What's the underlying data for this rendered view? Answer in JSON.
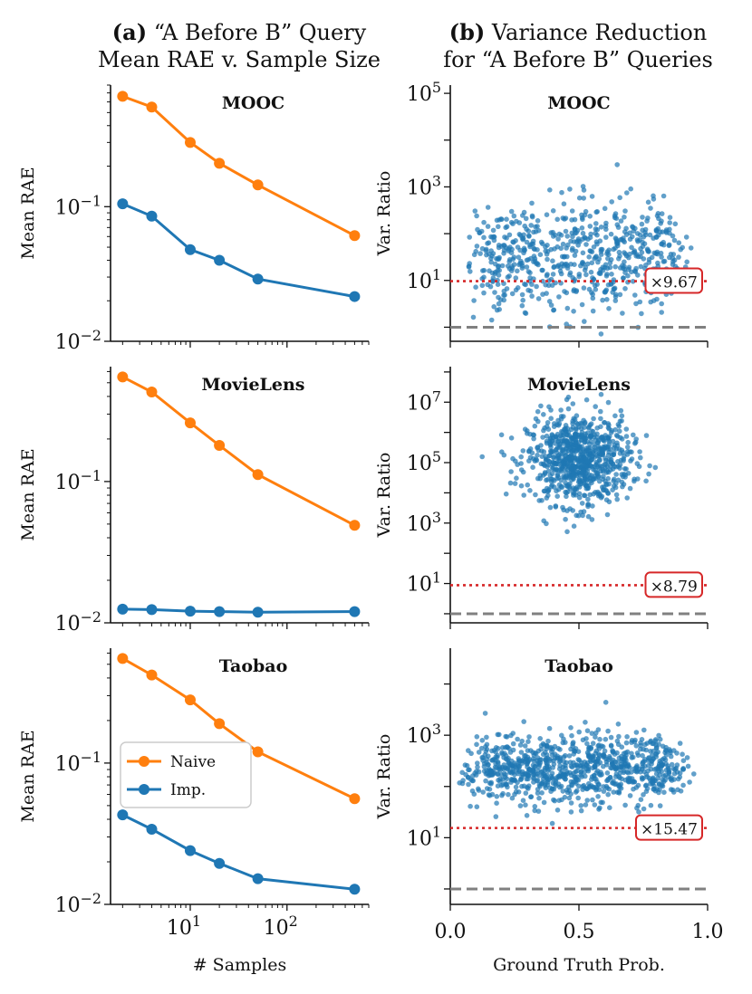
{
  "titles": {
    "left": {
      "tag": "(a)",
      "line1": "“A Before B” Query",
      "line2": "Mean RAE v. Sample Size"
    },
    "right": {
      "tag": "(b)",
      "line1": "Variance Reduction",
      "line2": "for “A Before B” Queries"
    }
  },
  "colors": {
    "naive": "#ff7f0e",
    "improved": "#1f77b4",
    "ratio_line": "#d62728",
    "baseline": "#808080"
  },
  "legend": {
    "items": [
      "Naive",
      "Imp."
    ],
    "placement": "center-left (Taobao panel)"
  },
  "chart_data": [
    {
      "type": "line",
      "panel": "MOOC",
      "ylabel": "Mean RAE",
      "xlabel": "",
      "xscale": "log",
      "yscale": "log",
      "xlim": [
        1.5,
        700
      ],
      "ylim": [
        0.01,
        0.8
      ],
      "x": [
        2,
        4,
        10,
        20,
        50,
        500
      ],
      "series": [
        {
          "name": "Naive",
          "values": [
            0.66,
            0.55,
            0.3,
            0.21,
            0.145,
            0.061
          ]
        },
        {
          "name": "Imp.",
          "values": [
            0.105,
            0.085,
            0.048,
            0.04,
            0.029,
            0.0215
          ]
        }
      ],
      "x_ticks": [
        "10^1",
        "10^2"
      ],
      "y_ticks": [
        "10^-2",
        "10^-1"
      ]
    },
    {
      "type": "scatter",
      "panel": "MOOC",
      "ylabel": "Var. Ratio",
      "xlabel": "",
      "yscale": "log",
      "xlim": [
        0,
        1
      ],
      "ylim": [
        0.5,
        150000
      ],
      "reference_ratio": 9.67,
      "ratio_label": "×9.67",
      "baseline": 1,
      "y_ticks": [
        "10^1",
        "10^3",
        "10^5"
      ]
    },
    {
      "type": "line",
      "panel": "MovieLens",
      "ylabel": "Mean RAE",
      "xlabel": "",
      "xscale": "log",
      "yscale": "log",
      "xlim": [
        1.5,
        700
      ],
      "ylim": [
        0.01,
        0.65
      ],
      "x": [
        2,
        4,
        10,
        20,
        50,
        500
      ],
      "series": [
        {
          "name": "Naive",
          "values": [
            0.55,
            0.43,
            0.26,
            0.18,
            0.112,
            0.049
          ]
        },
        {
          "name": "Imp.",
          "values": [
            0.0125,
            0.0124,
            0.0121,
            0.012,
            0.0119,
            0.012
          ]
        }
      ],
      "x_ticks": [
        "10^1",
        "10^2"
      ],
      "y_ticks": [
        "10^-2",
        "10^-1"
      ]
    },
    {
      "type": "scatter",
      "panel": "MovieLens",
      "ylabel": "Var. Ratio",
      "xlabel": "",
      "yscale": "log",
      "xlim": [
        0,
        1
      ],
      "ylim": [
        0.5,
        150000000
      ],
      "reference_ratio": 8.79,
      "ratio_label": "×8.79",
      "baseline": 1,
      "y_ticks": [
        "10^1",
        "10^3",
        "10^5",
        "10^7"
      ]
    },
    {
      "type": "line",
      "panel": "Taobao",
      "ylabel": "Mean RAE",
      "xlabel": "# Samples",
      "xscale": "log",
      "yscale": "log",
      "xlim": [
        1.5,
        700
      ],
      "ylim": [
        0.01,
        0.65
      ],
      "x": [
        2,
        4,
        10,
        20,
        50,
        500
      ],
      "series": [
        {
          "name": "Naive",
          "values": [
            0.55,
            0.42,
            0.28,
            0.19,
            0.12,
            0.056
          ]
        },
        {
          "name": "Imp.",
          "values": [
            0.043,
            0.034,
            0.024,
            0.0195,
            0.0152,
            0.0128
          ]
        }
      ],
      "x_ticks": [
        "10^1",
        "10^2"
      ],
      "y_ticks": [
        "10^-2",
        "10^-1"
      ]
    },
    {
      "type": "scatter",
      "panel": "Taobao",
      "ylabel": "Var. Ratio",
      "xlabel": "Ground Truth Prob.",
      "yscale": "log",
      "xlim": [
        0,
        1
      ],
      "ylim": [
        0.5,
        50000
      ],
      "reference_ratio": 15.47,
      "ratio_label": "×15.47",
      "baseline": 1,
      "x_ticks": [
        "0.0",
        "0.5",
        "1.0"
      ],
      "y_ticks": [
        "10^1",
        "10^3"
      ]
    }
  ]
}
